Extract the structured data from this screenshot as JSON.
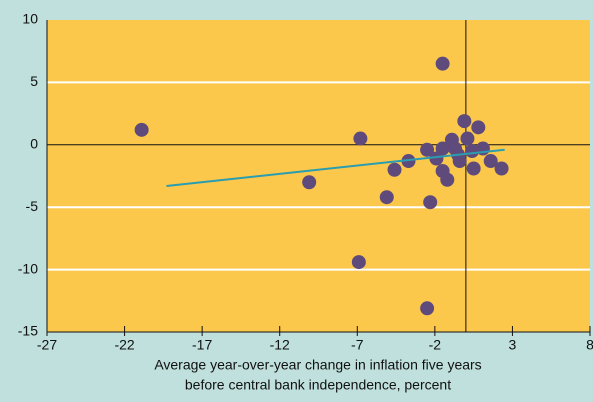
{
  "chart_data": {
    "type": "scatter",
    "xlabel": [
      "Average year-over-year change in inflation five years",
      "before central bank independence, percent"
    ],
    "x": [
      -20.9,
      -1.5,
      -10.1,
      -6.8,
      -6.9,
      -5.1,
      -4.6,
      -3.7,
      -2.5,
      -2.3,
      -2.5,
      -1.5,
      -1.5,
      -1.2,
      -0.9,
      -0.5,
      -0.1,
      0.1,
      0.4,
      0.8,
      1.1,
      1.6,
      0.5,
      2.3,
      -0.4,
      -0.7,
      -1.9
    ],
    "y": [
      1.2,
      6.5,
      -3.0,
      0.5,
      -9.4,
      -4.2,
      -2.0,
      -1.3,
      -13.1,
      -4.6,
      -0.4,
      -0.3,
      -2.1,
      -2.8,
      0.4,
      -0.8,
      1.9,
      0.5,
      -0.5,
      1.4,
      -0.3,
      -1.3,
      -1.9,
      -1.9,
      -1.3,
      -0.3,
      -1.1
    ],
    "color": "#5e4b7c",
    "trendline": {
      "x": [
        -19.3,
        2.5
      ],
      "y": [
        -3.3,
        -0.4
      ],
      "color": "#2a9db0"
    },
    "xlim": [
      -27,
      8
    ],
    "xticks": [
      -27,
      -22,
      -17,
      -12,
      -7,
      -2,
      3,
      8
    ],
    "ylim": [
      -15,
      10
    ],
    "yticks": [
      -15,
      -10,
      -5,
      0,
      5,
      10
    ],
    "grid": true,
    "plot_color": "#fcc84c",
    "background": "#bfe0dd"
  }
}
